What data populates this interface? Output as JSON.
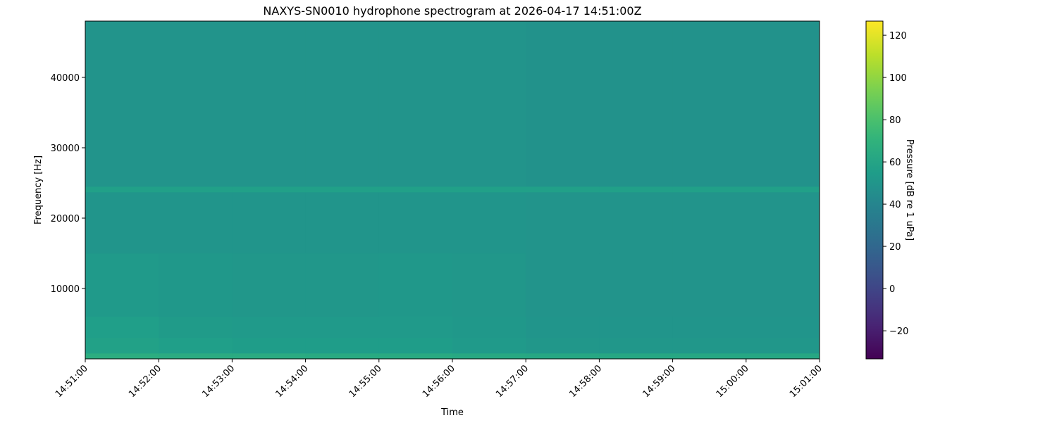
{
  "chart_data": {
    "type": "heatmap",
    "title": "NAXYS-SN0010 hydrophone spectrogram at 2026-04-17 14:51:00Z",
    "xlabel": "Time",
    "ylabel": "Frequency [Hz]",
    "colorbar_label": "Pressure [dB re 1 uPa]",
    "colormap": "viridis",
    "clim": [
      -33.3,
      126.7
    ],
    "ylim": [
      0,
      48000
    ],
    "xlim": [
      "14:51:00",
      "15:01:00"
    ],
    "x_ticks": [
      "14:51:00",
      "14:52:00",
      "14:53:00",
      "14:54:00",
      "14:55:00",
      "14:56:00",
      "14:57:00",
      "14:58:00",
      "14:59:00",
      "15:00:00",
      "15:01:00"
    ],
    "y_ticks": [
      10000,
      20000,
      30000,
      40000
    ],
    "colorbar_ticks": [
      -20,
      0,
      20,
      40,
      60,
      80,
      100,
      120
    ],
    "time_bins": [
      "14:51",
      "14:52",
      "14:53",
      "14:54",
      "14:55",
      "14:56",
      "14:57",
      "14:58",
      "14:59",
      "15:00"
    ],
    "freq_bands": [
      {
        "from": 0,
        "to": 800,
        "values": [
          66,
          65,
          65,
          64,
          64,
          63,
          62,
          62,
          62,
          62
        ]
      },
      {
        "from": 800,
        "to": 3000,
        "values": [
          58,
          56,
          55,
          55,
          55,
          53,
          51,
          51,
          51,
          51
        ]
      },
      {
        "from": 3000,
        "to": 6000,
        "values": [
          56,
          54,
          53,
          53,
          53,
          52,
          50,
          50,
          50,
          50
        ]
      },
      {
        "from": 6000,
        "to": 15000,
        "values": [
          53,
          52,
          51,
          51,
          52,
          51,
          49,
          49,
          49,
          49
        ]
      },
      {
        "from": 15000,
        "to": 23700,
        "values": [
          50,
          50,
          50,
          50,
          50,
          50,
          49,
          49,
          49,
          49
        ]
      },
      {
        "from": 23700,
        "to": 24500,
        "values": [
          57,
          57,
          57,
          57,
          57,
          57,
          57,
          57,
          57,
          57
        ]
      },
      {
        "from": 24500,
        "to": 48000,
        "values": [
          49,
          49,
          49,
          49,
          49,
          49,
          48,
          48,
          48,
          48
        ]
      }
    ]
  }
}
